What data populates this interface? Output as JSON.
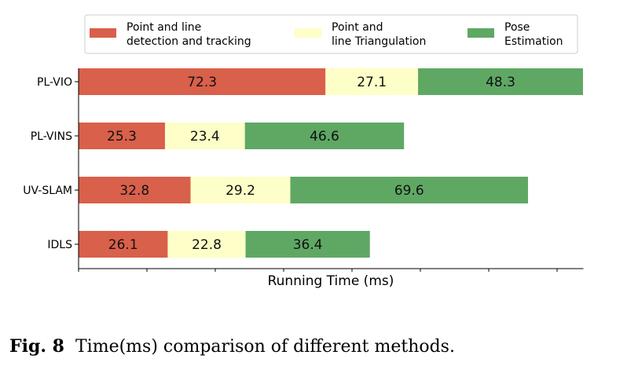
{
  "chart_data": {
    "type": "bar",
    "orientation": "horizontal",
    "stacked": true,
    "categories": [
      "PL-VIO",
      "PL-VINS",
      "UV-SLAM",
      "IDLS"
    ],
    "series": [
      {
        "name": "Point and line\ndetection and tracking",
        "color": "#d9604a",
        "values": [
          72.3,
          25.3,
          32.8,
          26.1
        ]
      },
      {
        "name": "Point and\nline Triangulation",
        "color": "#fefec8",
        "values": [
          27.1,
          23.4,
          29.2,
          22.8
        ]
      },
      {
        "name": "Pose\nEstimation",
        "color": "#5fa864",
        "values": [
          48.3,
          46.6,
          69.6,
          36.4
        ]
      }
    ],
    "xlabel": "Running Time (ms)",
    "ylabel": "",
    "xlim": [
      0,
      147.7
    ],
    "data_labels": true,
    "legend": "top, horizontal",
    "grid": false
  },
  "caption": {
    "label": "Fig. 8",
    "text": "Time(ms) comparison of different methods."
  }
}
